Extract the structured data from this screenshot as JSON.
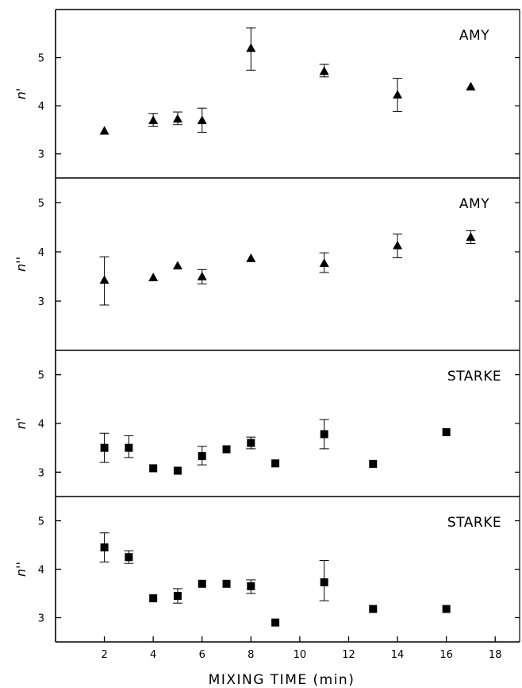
{
  "chart_data": [
    {
      "type": "scatter",
      "panel_label": "AMY",
      "ylabel": "n'",
      "yticks": [
        3,
        4,
        5
      ],
      "ylim": [
        2.5,
        6.0
      ],
      "marker": "triangle",
      "points": [
        {
          "x": 2,
          "y": 3.48
        },
        {
          "x": 4,
          "y": 3.7,
          "err": [
            3.57,
            3.84
          ]
        },
        {
          "x": 5,
          "y": 3.73,
          "err": [
            3.61,
            3.87
          ]
        },
        {
          "x": 6,
          "y": 3.7,
          "err": [
            3.45,
            3.95
          ]
        },
        {
          "x": 8,
          "y": 5.2,
          "err": [
            4.74,
            5.62
          ]
        },
        {
          "x": 11,
          "y": 4.72,
          "err": [
            4.6,
            4.86
          ]
        },
        {
          "x": 14,
          "y": 4.23,
          "err": [
            3.88,
            4.57
          ]
        },
        {
          "x": 17,
          "y": 4.4
        }
      ]
    },
    {
      "type": "scatter",
      "panel_label": "AMY",
      "ylabel": "n''",
      "yticks": [
        3,
        4,
        5
      ],
      "ylim": [
        2.0,
        5.5
      ],
      "marker": "triangle",
      "points": [
        {
          "x": 2,
          "y": 3.43,
          "err": [
            2.92,
            3.9
          ]
        },
        {
          "x": 4,
          "y": 3.48
        },
        {
          "x": 5,
          "y": 3.72
        },
        {
          "x": 6,
          "y": 3.5,
          "err": [
            3.35,
            3.64
          ]
        },
        {
          "x": 8,
          "y": 3.87
        },
        {
          "x": 11,
          "y": 3.77,
          "err": [
            3.58,
            3.98
          ]
        },
        {
          "x": 14,
          "y": 4.13,
          "err": [
            3.88,
            4.36
          ]
        },
        {
          "x": 17,
          "y": 4.3,
          "err": [
            4.17,
            4.43
          ]
        }
      ]
    },
    {
      "type": "scatter",
      "panel_label": "STARKE",
      "ylabel": "n'",
      "yticks": [
        3,
        4,
        5
      ],
      "ylim": [
        2.5,
        5.5
      ],
      "marker": "square",
      "points": [
        {
          "x": 2,
          "y": 3.5,
          "err": [
            3.2,
            3.8
          ]
        },
        {
          "x": 3,
          "y": 3.5,
          "err": [
            3.3,
            3.75
          ]
        },
        {
          "x": 4,
          "y": 3.08
        },
        {
          "x": 5,
          "y": 3.03
        },
        {
          "x": 6,
          "y": 3.33,
          "err": [
            3.15,
            3.53
          ]
        },
        {
          "x": 7,
          "y": 3.47
        },
        {
          "x": 8,
          "y": 3.6,
          "err": [
            3.48,
            3.72
          ]
        },
        {
          "x": 9,
          "y": 3.18
        },
        {
          "x": 11,
          "y": 3.78,
          "err": [
            3.48,
            4.08
          ]
        },
        {
          "x": 13,
          "y": 3.17
        },
        {
          "x": 16,
          "y": 3.82
        }
      ]
    },
    {
      "type": "scatter",
      "panel_label": "STARKE",
      "ylabel": "n''",
      "yticks": [
        3,
        4,
        5
      ],
      "ylim": [
        2.5,
        5.5
      ],
      "marker": "square",
      "points": [
        {
          "x": 2,
          "y": 4.45,
          "err": [
            4.15,
            4.75
          ]
        },
        {
          "x": 3,
          "y": 4.25,
          "err": [
            4.12,
            4.38
          ]
        },
        {
          "x": 4,
          "y": 3.4
        },
        {
          "x": 5,
          "y": 3.45,
          "err": [
            3.3,
            3.6
          ]
        },
        {
          "x": 6,
          "y": 3.7
        },
        {
          "x": 7,
          "y": 3.7
        },
        {
          "x": 8,
          "y": 3.65,
          "err": [
            3.5,
            3.78
          ]
        },
        {
          "x": 9,
          "y": 2.9
        },
        {
          "x": 11,
          "y": 3.73,
          "err": [
            3.35,
            4.18
          ]
        },
        {
          "x": 13,
          "y": 3.18
        },
        {
          "x": 16,
          "y": 3.18
        }
      ]
    }
  ],
  "x_axis": {
    "title": "MIXING TIME (min)",
    "ticks": [
      2,
      4,
      6,
      8,
      10,
      12,
      14,
      16,
      18
    ],
    "xlim": [
      0,
      19
    ]
  }
}
